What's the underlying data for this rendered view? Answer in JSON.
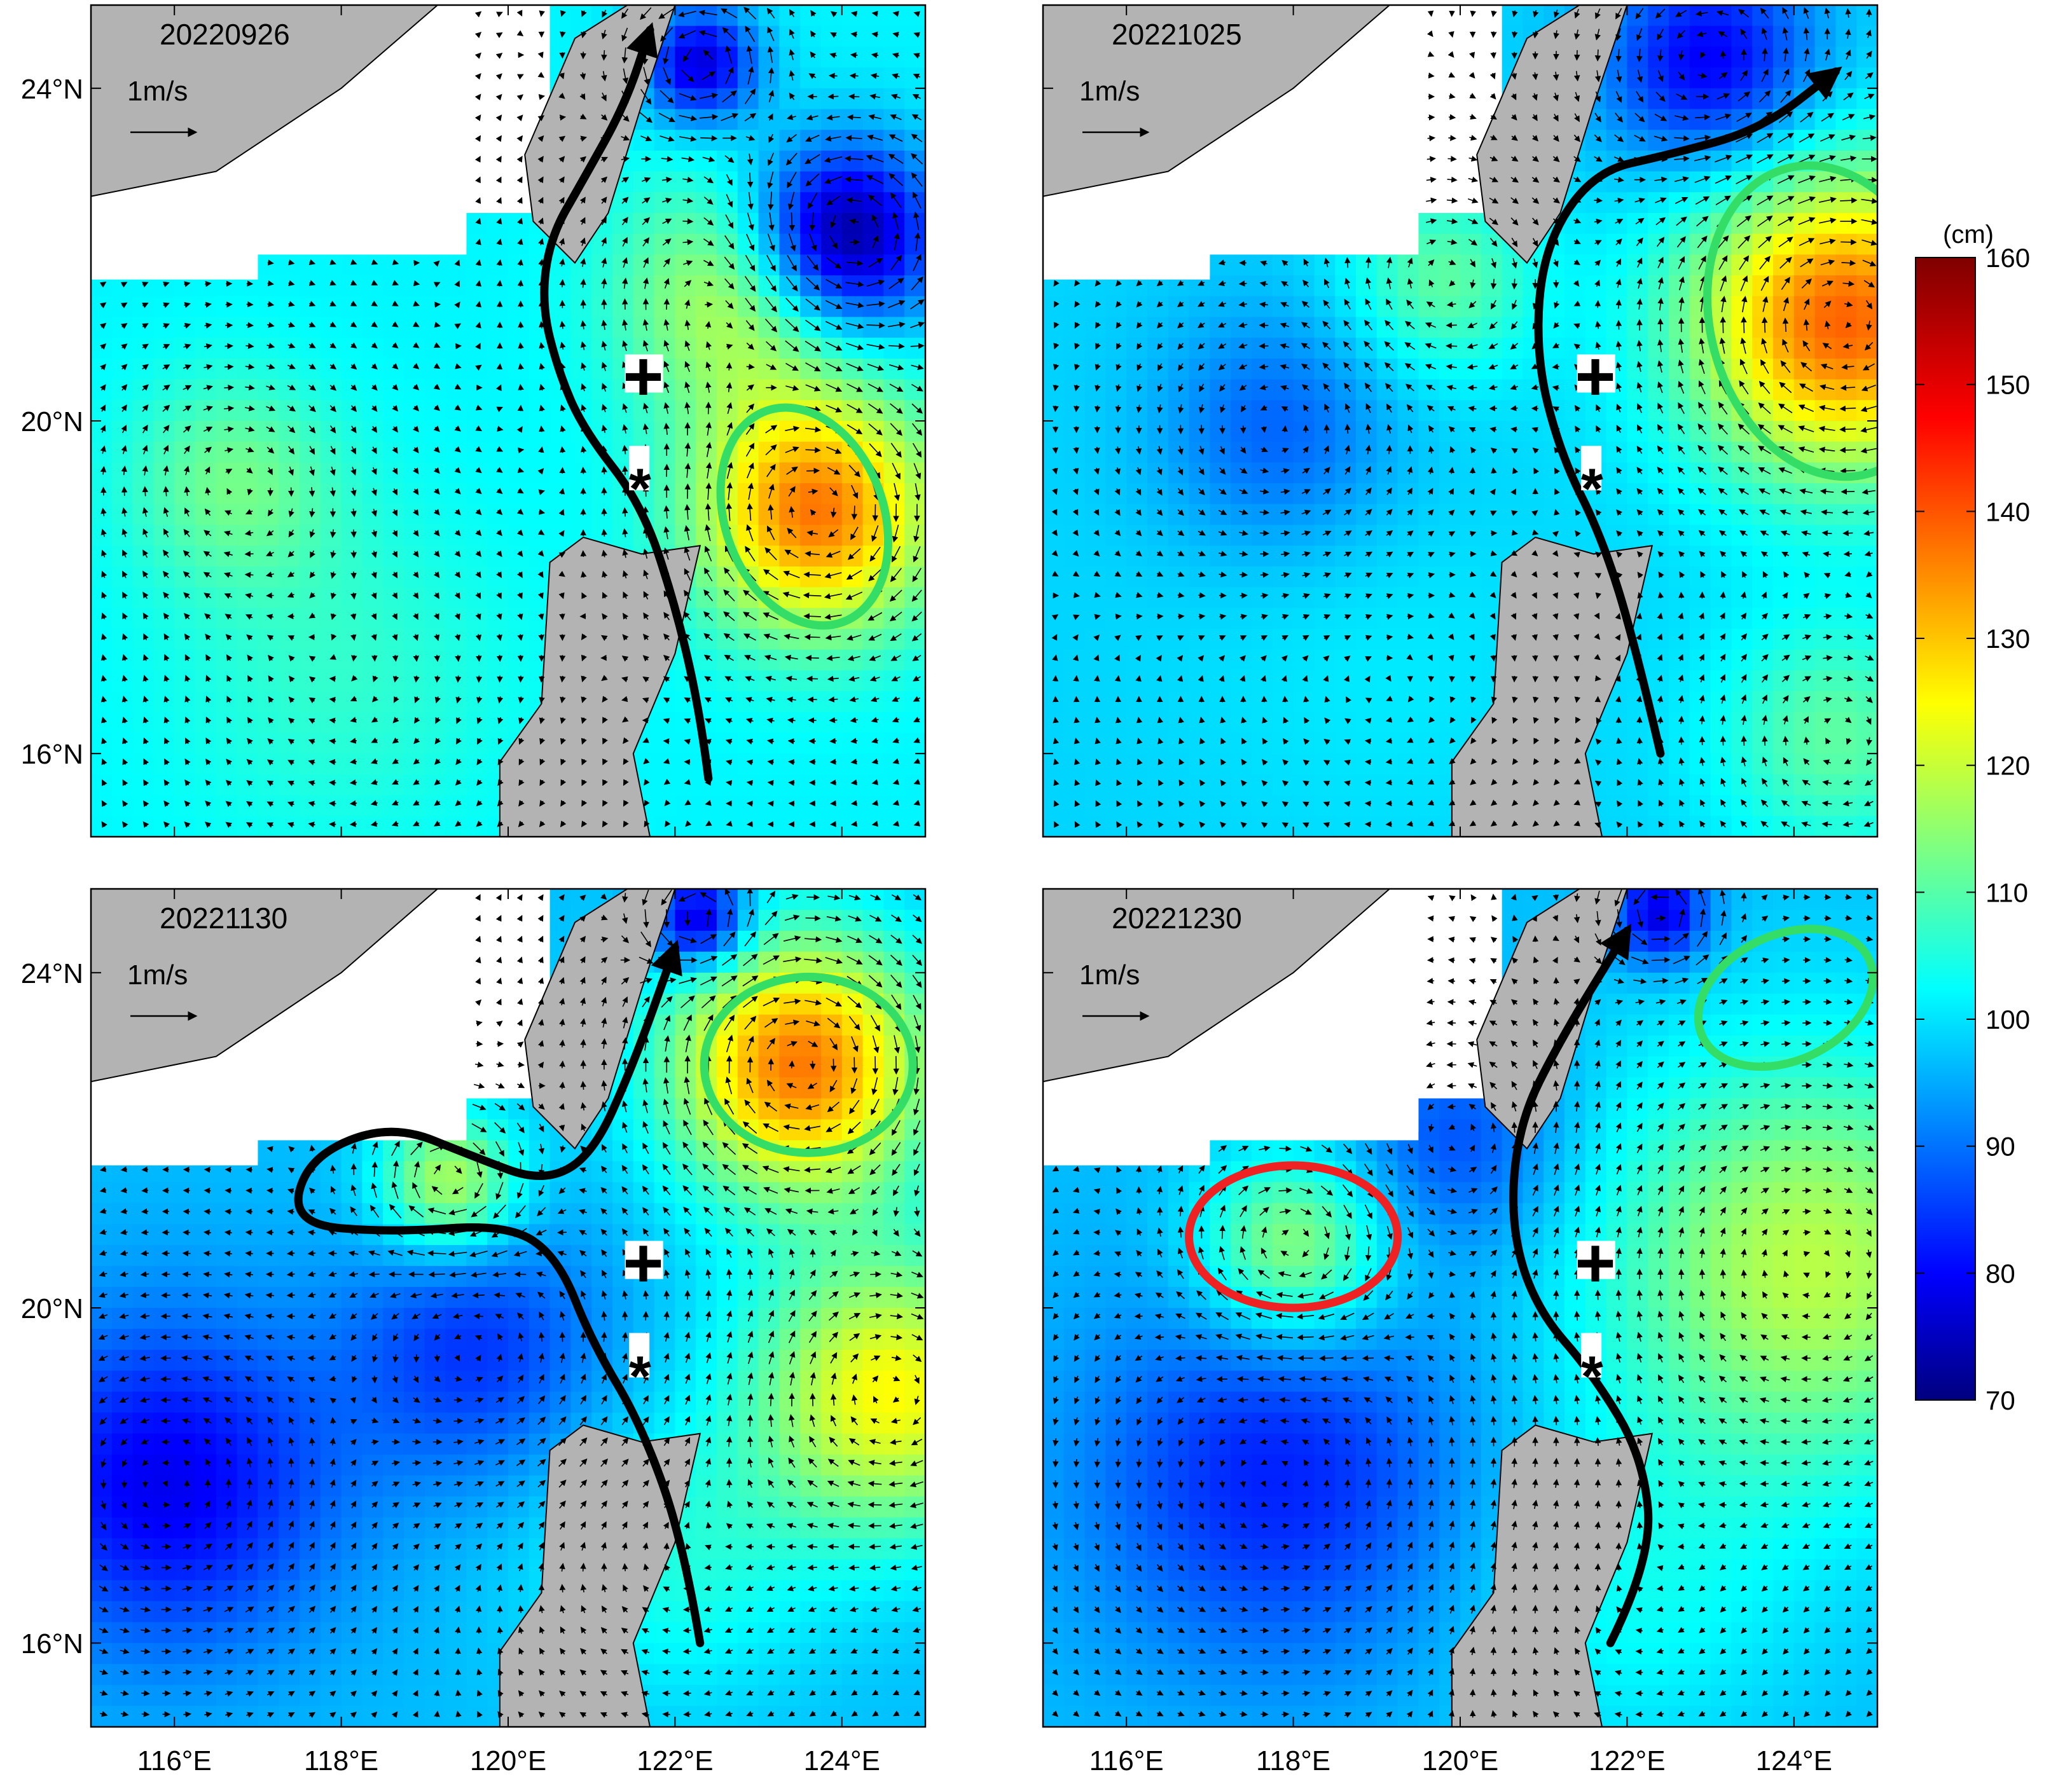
{
  "panels": [
    {
      "date": "20220926",
      "scale_label": "1m/s"
    },
    {
      "date": "20221025",
      "scale_label": "1m/s"
    },
    {
      "date": "20221130",
      "scale_label": "1m/s"
    },
    {
      "date": "20221230",
      "scale_label": "1m/s"
    }
  ],
  "x_ticks": [
    "116°E",
    "118°E",
    "120°E",
    "122°E",
    "124°E"
  ],
  "y_ticks": [
    "24°N",
    "20°N",
    "16°N"
  ],
  "colorbar": {
    "unit": "(cm)",
    "min": 70,
    "max": 160,
    "ticks": [
      "160",
      "150",
      "140",
      "130",
      "120",
      "110",
      "100",
      "90",
      "80",
      "70"
    ],
    "colormap": "jet"
  },
  "markers": {
    "plus": "+",
    "star": "*"
  },
  "colors": {
    "land": "#b3b3b3",
    "kuroshio_path": "#000000",
    "warm_eddy": "#33dd66",
    "cold_eddy": "#ee2222",
    "marker": "#ee1111"
  },
  "chart_data": {
    "type": "heatmap",
    "variable": "sea surface height with surface current vectors",
    "lon_range": [
      115,
      125
    ],
    "lat_range": [
      15,
      25
    ],
    "color_range": [
      70,
      160
    ],
    "panels": [
      {
        "date": "20220926",
        "eddies": [
          {
            "kind": "anticyclonic",
            "lon": 123.7,
            "lat": 18.9,
            "ssh_cm": 138
          }
        ]
      },
      {
        "date": "20221025",
        "eddies": [
          {
            "kind": "anticyclonic",
            "lon": 124.2,
            "lat": 21.3,
            "ssh_cm": 140
          }
        ]
      },
      {
        "date": "20221130",
        "eddies": [
          {
            "kind": "anticyclonic",
            "lon": 123.5,
            "lat": 22.9,
            "ssh_cm": 140
          }
        ]
      },
      {
        "date": "20221230",
        "eddies": [
          {
            "kind": "anticyclonic",
            "lon": 123.8,
            "lat": 23.6,
            "ssh_cm": 118
          },
          {
            "kind": "loop-shedding",
            "lon": 118.0,
            "lat": 20.7,
            "ssh_cm": 118
          }
        ]
      }
    ]
  }
}
